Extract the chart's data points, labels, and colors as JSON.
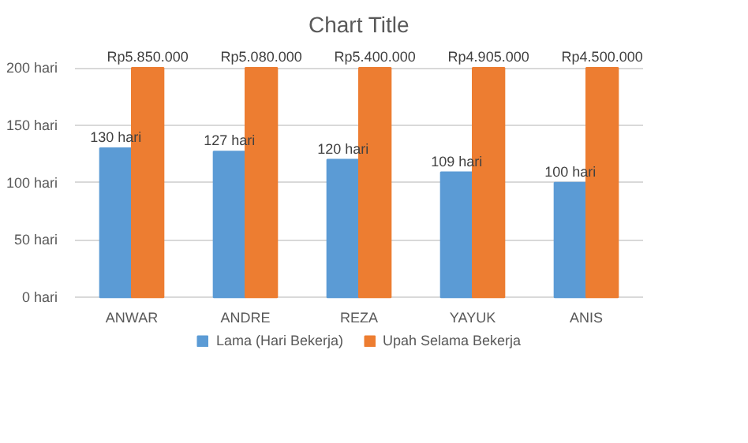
{
  "chart_data": {
    "type": "bar",
    "title": "Chart Title",
    "categories": [
      "ANWAR",
      "ANDRE",
      "REZA",
      "YAYUK",
      "ANIS"
    ],
    "series": [
      {
        "name": "Lama (Hari Bekerja)",
        "color": "#5b9bd5",
        "values": [
          130,
          127,
          120,
          109,
          100
        ],
        "value_labels": [
          "130 hari",
          "127 hari",
          "120 hari",
          "109 hari",
          "100 hari"
        ]
      },
      {
        "name": "Upah Selama Bekerja",
        "color": "#ed7d31",
        "values": [
          200,
          200,
          200,
          200,
          200
        ],
        "value_labels": [
          "Rp5.850.000",
          "Rp5.080.000",
          "Rp5.400.000",
          "Rp4.905.000",
          "Rp4.500.000"
        ]
      }
    ],
    "ylim": [
      0,
      200
    ],
    "yticks": [
      {
        "value": 0,
        "label": "0 hari"
      },
      {
        "value": 50,
        "label": "50 hari"
      },
      {
        "value": 100,
        "label": "100 hari"
      },
      {
        "value": 150,
        "label": "150 hari"
      },
      {
        "value": 200,
        "label": "200 hari"
      }
    ],
    "grid": "y",
    "legend": "bottom"
  }
}
